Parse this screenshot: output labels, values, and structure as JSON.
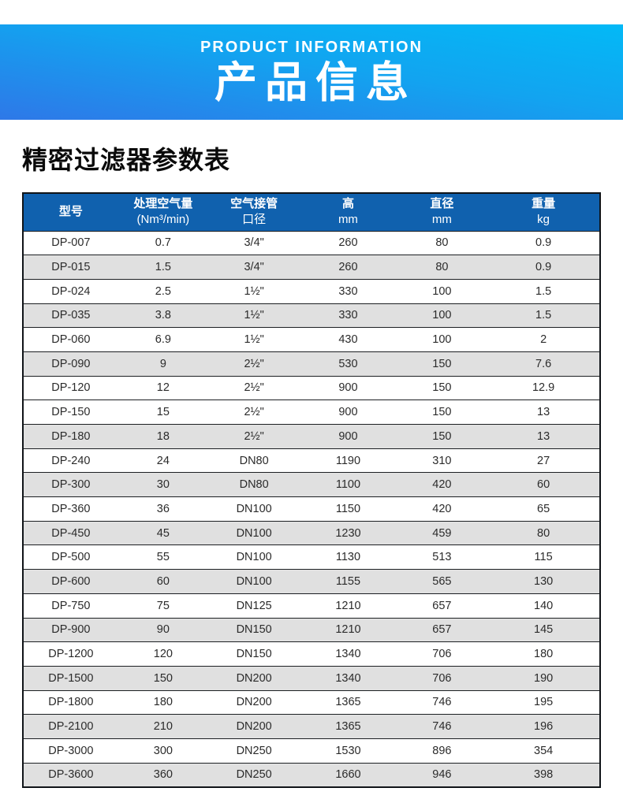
{
  "banner": {
    "subtitle": "PRODUCT INFORMATION",
    "title": "产品信息"
  },
  "section": {
    "heading": "精密过滤器参数表"
  },
  "colors": {
    "banner_gradient_start": "#03b9f6",
    "banner_gradient_end": "#2e78e8",
    "table_header_bg": "#1061ae",
    "row_shaded_bg": "#e0e0e0",
    "border": "#101418"
  },
  "table": {
    "headers": [
      {
        "line1": "型号",
        "line2": ""
      },
      {
        "line1": "处理空气量",
        "line2": "(Nm³/min)"
      },
      {
        "line1": "空气接管",
        "line2": "口径"
      },
      {
        "line1": "高",
        "line2": "mm"
      },
      {
        "line1": "直径",
        "line2": "mm"
      },
      {
        "line1": "重量",
        "line2": "kg"
      }
    ],
    "rows": [
      {
        "model": "DP-007",
        "airflow": "0.7",
        "pipe": "3/4\"",
        "height": "260",
        "diameter": "80",
        "weight": "0.9",
        "shaded": false
      },
      {
        "model": "DP-015",
        "airflow": "1.5",
        "pipe": "3/4\"",
        "height": "260",
        "diameter": "80",
        "weight": "0.9",
        "shaded": true
      },
      {
        "model": "DP-024",
        "airflow": "2.5",
        "pipe": "1½\"",
        "height": "330",
        "diameter": "100",
        "weight": "1.5",
        "shaded": false
      },
      {
        "model": "DP-035",
        "airflow": "3.8",
        "pipe": "1½\"",
        "height": "330",
        "diameter": "100",
        "weight": "1.5",
        "shaded": true
      },
      {
        "model": "DP-060",
        "airflow": "6.9",
        "pipe": "1½\"",
        "height": "430",
        "diameter": "100",
        "weight": "2",
        "shaded": false
      },
      {
        "model": "DP-090",
        "airflow": "9",
        "pipe": "2½\"",
        "height": "530",
        "diameter": "150",
        "weight": "7.6",
        "shaded": true
      },
      {
        "model": "DP-120",
        "airflow": "12",
        "pipe": "2½\"",
        "height": "900",
        "diameter": "150",
        "weight": "12.9",
        "shaded": false
      },
      {
        "model": "DP-150",
        "airflow": "15",
        "pipe": "2½\"",
        "height": "900",
        "diameter": "150",
        "weight": "13",
        "shaded": false
      },
      {
        "model": "DP-180",
        "airflow": "18",
        "pipe": "2½\"",
        "height": "900",
        "diameter": "150",
        "weight": "13",
        "shaded": true
      },
      {
        "model": "DP-240",
        "airflow": "24",
        "pipe": "DN80",
        "height": "1190",
        "diameter": "310",
        "weight": "27",
        "shaded": false
      },
      {
        "model": "DP-300",
        "airflow": "30",
        "pipe": "DN80",
        "height": "1100",
        "diameter": "420",
        "weight": "60",
        "shaded": true
      },
      {
        "model": "DP-360",
        "airflow": "36",
        "pipe": "DN100",
        "height": "1150",
        "diameter": "420",
        "weight": "65",
        "shaded": false
      },
      {
        "model": "DP-450",
        "airflow": "45",
        "pipe": "DN100",
        "height": "1230",
        "diameter": "459",
        "weight": "80",
        "shaded": true
      },
      {
        "model": "DP-500",
        "airflow": "55",
        "pipe": "DN100",
        "height": "1130",
        "diameter": "513",
        "weight": "115",
        "shaded": false
      },
      {
        "model": "DP-600",
        "airflow": "60",
        "pipe": "DN100",
        "height": "1155",
        "diameter": "565",
        "weight": "130",
        "shaded": true
      },
      {
        "model": "DP-750",
        "airflow": "75",
        "pipe": "DN125",
        "height": "1210",
        "diameter": "657",
        "weight": "140",
        "shaded": false
      },
      {
        "model": "DP-900",
        "airflow": "90",
        "pipe": "DN150",
        "height": "1210",
        "diameter": "657",
        "weight": "145",
        "shaded": true
      },
      {
        "model": "DP-1200",
        "airflow": "120",
        "pipe": "DN150",
        "height": "1340",
        "diameter": "706",
        "weight": "180",
        "shaded": false
      },
      {
        "model": "DP-1500",
        "airflow": "150",
        "pipe": "DN200",
        "height": "1340",
        "diameter": "706",
        "weight": "190",
        "shaded": true
      },
      {
        "model": "DP-1800",
        "airflow": "180",
        "pipe": "DN200",
        "height": "1365",
        "diameter": "746",
        "weight": "195",
        "shaded": false
      },
      {
        "model": "DP-2100",
        "airflow": "210",
        "pipe": "DN200",
        "height": "1365",
        "diameter": "746",
        "weight": "196",
        "shaded": true
      },
      {
        "model": "DP-3000",
        "airflow": "300",
        "pipe": "DN250",
        "height": "1530",
        "diameter": "896",
        "weight": "354",
        "shaded": false
      },
      {
        "model": "DP-3600",
        "airflow": "360",
        "pipe": "DN250",
        "height": "1660",
        "diameter": "946",
        "weight": "398",
        "shaded": true
      }
    ],
    "column_keys": [
      "model",
      "airflow",
      "pipe",
      "height",
      "diameter",
      "weight"
    ]
  }
}
